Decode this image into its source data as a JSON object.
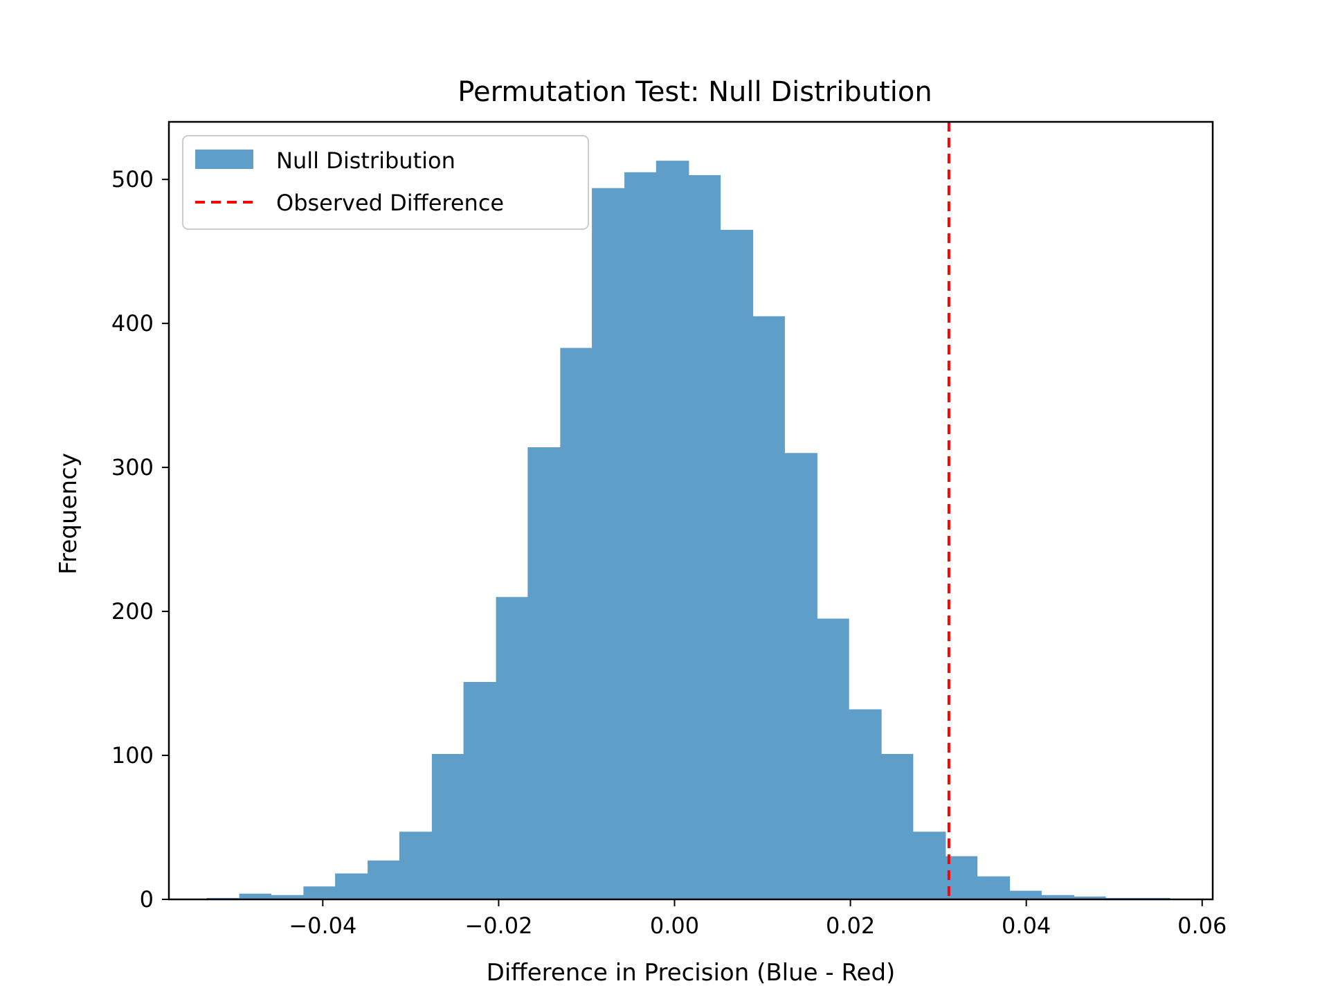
{
  "chart_data": {
    "type": "bar",
    "title": "Permutation Test: Null Distribution",
    "xlabel": "Difference in Precision (Blue - Red)",
    "ylabel": "Frequency",
    "xlim": [
      -0.0575,
      0.0612
    ],
    "ylim": [
      0,
      540
    ],
    "x_ticks": [
      -0.04,
      -0.02,
      0.0,
      0.02,
      0.04,
      0.06
    ],
    "x_tick_labels": [
      "−0.04",
      "−0.02",
      "0.00",
      "0.02",
      "0.04",
      "0.06"
    ],
    "y_ticks": [
      0,
      100,
      200,
      300,
      400,
      500
    ],
    "y_tick_labels": [
      "0",
      "100",
      "200",
      "300",
      "400",
      "500"
    ],
    "grid": false,
    "legend_position": "upper-left",
    "series": [
      {
        "name": "Null Distribution",
        "color": "#5f9ec9",
        "bins": [
          {
            "x0": -0.0532,
            "x1": -0.0495,
            "value": 1
          },
          {
            "x0": -0.0495,
            "x1": -0.0459,
            "value": 4
          },
          {
            "x0": -0.0459,
            "x1": -0.0422,
            "value": 3
          },
          {
            "x0": -0.0422,
            "x1": -0.0386,
            "value": 9
          },
          {
            "x0": -0.0386,
            "x1": -0.0349,
            "value": 18
          },
          {
            "x0": -0.0349,
            "x1": -0.0313,
            "value": 27
          },
          {
            "x0": -0.0313,
            "x1": -0.0276,
            "value": 47
          },
          {
            "x0": -0.0276,
            "x1": -0.024,
            "value": 101
          },
          {
            "x0": -0.024,
            "x1": -0.0203,
            "value": 151
          },
          {
            "x0": -0.0203,
            "x1": -0.0167,
            "value": 210
          },
          {
            "x0": -0.0167,
            "x1": -0.013,
            "value": 314
          },
          {
            "x0": -0.013,
            "x1": -0.0094,
            "value": 383
          },
          {
            "x0": -0.0094,
            "x1": -0.0057,
            "value": 494
          },
          {
            "x0": -0.0057,
            "x1": -0.0021,
            "value": 505
          },
          {
            "x0": -0.0021,
            "x1": 0.0016,
            "value": 513
          },
          {
            "x0": 0.0016,
            "x1": 0.0052,
            "value": 503
          },
          {
            "x0": 0.0052,
            "x1": 0.0089,
            "value": 465
          },
          {
            "x0": 0.0089,
            "x1": 0.0125,
            "value": 405
          },
          {
            "x0": 0.0125,
            "x1": 0.0162,
            "value": 310
          },
          {
            "x0": 0.0162,
            "x1": 0.0198,
            "value": 195
          },
          {
            "x0": 0.0198,
            "x1": 0.0235,
            "value": 132
          },
          {
            "x0": 0.0235,
            "x1": 0.0271,
            "value": 101
          },
          {
            "x0": 0.0271,
            "x1": 0.0308,
            "value": 47
          },
          {
            "x0": 0.0308,
            "x1": 0.0344,
            "value": 30
          },
          {
            "x0": 0.0344,
            "x1": 0.0381,
            "value": 16
          },
          {
            "x0": 0.0381,
            "x1": 0.0417,
            "value": 6
          },
          {
            "x0": 0.0417,
            "x1": 0.0454,
            "value": 3
          },
          {
            "x0": 0.0454,
            "x1": 0.049,
            "value": 2
          },
          {
            "x0": 0.049,
            "x1": 0.0527,
            "value": 1
          },
          {
            "x0": 0.0527,
            "x1": 0.0563,
            "value": 1
          }
        ]
      },
      {
        "name": "Observed Difference",
        "type": "vline",
        "color": "#ff0000",
        "style": "dashed",
        "x": 0.0312
      }
    ]
  }
}
